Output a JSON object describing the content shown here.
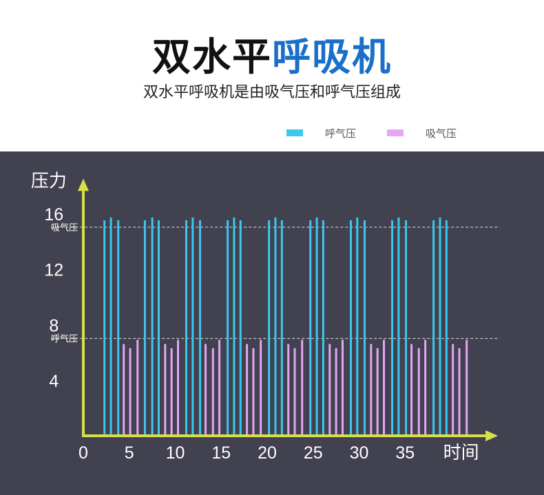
{
  "header": {
    "title_main": "双水平",
    "title_accent": "呼吸机",
    "subtitle": "双水平呼吸机是由吸气压和呼气压组成"
  },
  "colors": {
    "exhale": "#3cc8ef",
    "inhale": "#e5a6f3",
    "axis": "#d6e04a",
    "panel": "#41414f",
    "text": "#ffffff",
    "title_accent": "#1a6fc9"
  },
  "chart_data": {
    "type": "bar",
    "xlabel": "时间",
    "ylabel": "压力",
    "xlim": [
      0,
      45
    ],
    "ylim": [
      0,
      20
    ],
    "x_ticks": [
      0,
      5,
      10,
      15,
      20,
      25,
      30,
      35
    ],
    "y_ticks": [
      4,
      8,
      12,
      16
    ],
    "grid": false,
    "legend": "top-right",
    "reference_lines": [
      {
        "label": "吸气压",
        "y": 15
      },
      {
        "label": "呼气压",
        "y": 7
      }
    ],
    "series": [
      {
        "name": "呼气压",
        "color": "#3cc8ef",
        "points": [
          {
            "x": 2.3,
            "y": 15.5
          },
          {
            "x": 3.0,
            "y": 15.7
          },
          {
            "x": 3.8,
            "y": 15.5
          },
          {
            "x": 6.7,
            "y": 15.5
          },
          {
            "x": 7.5,
            "y": 15.7
          },
          {
            "x": 8.2,
            "y": 15.5
          },
          {
            "x": 11.2,
            "y": 15.5
          },
          {
            "x": 11.9,
            "y": 15.7
          },
          {
            "x": 12.7,
            "y": 15.5
          },
          {
            "x": 15.7,
            "y": 15.5
          },
          {
            "x": 16.4,
            "y": 15.7
          },
          {
            "x": 17.1,
            "y": 15.5
          },
          {
            "x": 20.2,
            "y": 15.5
          },
          {
            "x": 20.9,
            "y": 15.7
          },
          {
            "x": 21.6,
            "y": 15.5
          },
          {
            "x": 24.7,
            "y": 15.5
          },
          {
            "x": 25.4,
            "y": 15.7
          },
          {
            "x": 26.1,
            "y": 15.5
          },
          {
            "x": 29.1,
            "y": 15.5
          },
          {
            "x": 29.8,
            "y": 15.7
          },
          {
            "x": 30.6,
            "y": 15.5
          },
          {
            "x": 33.6,
            "y": 15.5
          },
          {
            "x": 34.3,
            "y": 15.7
          },
          {
            "x": 35.1,
            "y": 15.5
          },
          {
            "x": 38.1,
            "y": 15.5
          },
          {
            "x": 38.8,
            "y": 15.7
          },
          {
            "x": 39.5,
            "y": 15.5
          }
        ]
      },
      {
        "name": "吸气压",
        "color": "#e5a6f3",
        "points": [
          {
            "x": 4.4,
            "y": 6.6
          },
          {
            "x": 5.1,
            "y": 6.3
          },
          {
            "x": 5.9,
            "y": 6.9
          },
          {
            "x": 8.9,
            "y": 6.6
          },
          {
            "x": 9.6,
            "y": 6.3
          },
          {
            "x": 10.3,
            "y": 6.9
          },
          {
            "x": 13.3,
            "y": 6.6
          },
          {
            "x": 14.1,
            "y": 6.3
          },
          {
            "x": 14.8,
            "y": 6.9
          },
          {
            "x": 17.8,
            "y": 6.6
          },
          {
            "x": 18.5,
            "y": 6.3
          },
          {
            "x": 19.3,
            "y": 6.9
          },
          {
            "x": 22.3,
            "y": 6.6
          },
          {
            "x": 23.0,
            "y": 6.3
          },
          {
            "x": 23.8,
            "y": 6.9
          },
          {
            "x": 26.8,
            "y": 6.6
          },
          {
            "x": 27.5,
            "y": 6.3
          },
          {
            "x": 28.2,
            "y": 6.9
          },
          {
            "x": 31.3,
            "y": 6.6
          },
          {
            "x": 32.0,
            "y": 6.3
          },
          {
            "x": 32.7,
            "y": 6.9
          },
          {
            "x": 35.7,
            "y": 6.6
          },
          {
            "x": 36.5,
            "y": 6.3
          },
          {
            "x": 37.2,
            "y": 6.9
          },
          {
            "x": 40.2,
            "y": 6.6
          },
          {
            "x": 40.9,
            "y": 6.3
          },
          {
            "x": 41.7,
            "y": 6.9
          }
        ]
      }
    ]
  }
}
